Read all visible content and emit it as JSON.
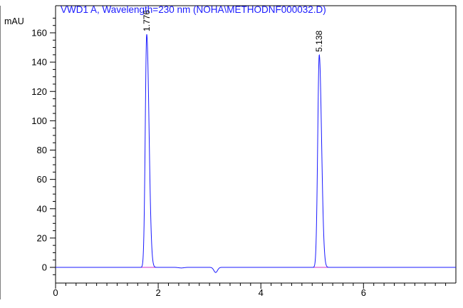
{
  "chart_data": {
    "type": "line",
    "title": "VWD1 A, Wavelength=230 nm (NOHA\\METHODNF000032.D)",
    "ylabel": "mAU",
    "xlabel": "",
    "xlim": [
      0,
      7.8
    ],
    "ylim": [
      -5,
      170
    ],
    "x_ticks": [
      0,
      2,
      4,
      6
    ],
    "y_ticks": [
      0,
      20,
      40,
      60,
      80,
      100,
      120,
      140,
      160
    ],
    "x_tick_labels": [
      "0",
      "2",
      "4",
      "6"
    ],
    "y_tick_labels": [
      "0",
      "20",
      "40",
      "60",
      "80",
      "100",
      "120",
      "140",
      "160"
    ],
    "grid": false,
    "peaks": [
      {
        "label": "1.776",
        "rt": 1.776,
        "height": 159,
        "sigma_left": 0.028,
        "sigma_right": 0.045
      },
      {
        "label": "5.138",
        "rt": 5.138,
        "height": 145,
        "sigma_left": 0.03,
        "sigma_right": 0.045
      }
    ],
    "dips": [
      {
        "rt": 3.12,
        "depth": -3.5,
        "width": 0.035
      },
      {
        "rt": 2.45,
        "depth": -0.4,
        "width": 0.05
      }
    ],
    "series": [
      {
        "name": "",
        "color": "#1a1aff"
      }
    ],
    "baselines": [
      {
        "x": [
          1.5,
          2.08
        ],
        "color": "#cc33cc"
      },
      {
        "x": [
          4.88,
          5.55
        ],
        "color": "#cc33cc"
      }
    ],
    "colors": {
      "signal": "#1a1aff",
      "baseline": "#cc33cc",
      "axis": "#000000",
      "title": "#1a1aff"
    }
  }
}
